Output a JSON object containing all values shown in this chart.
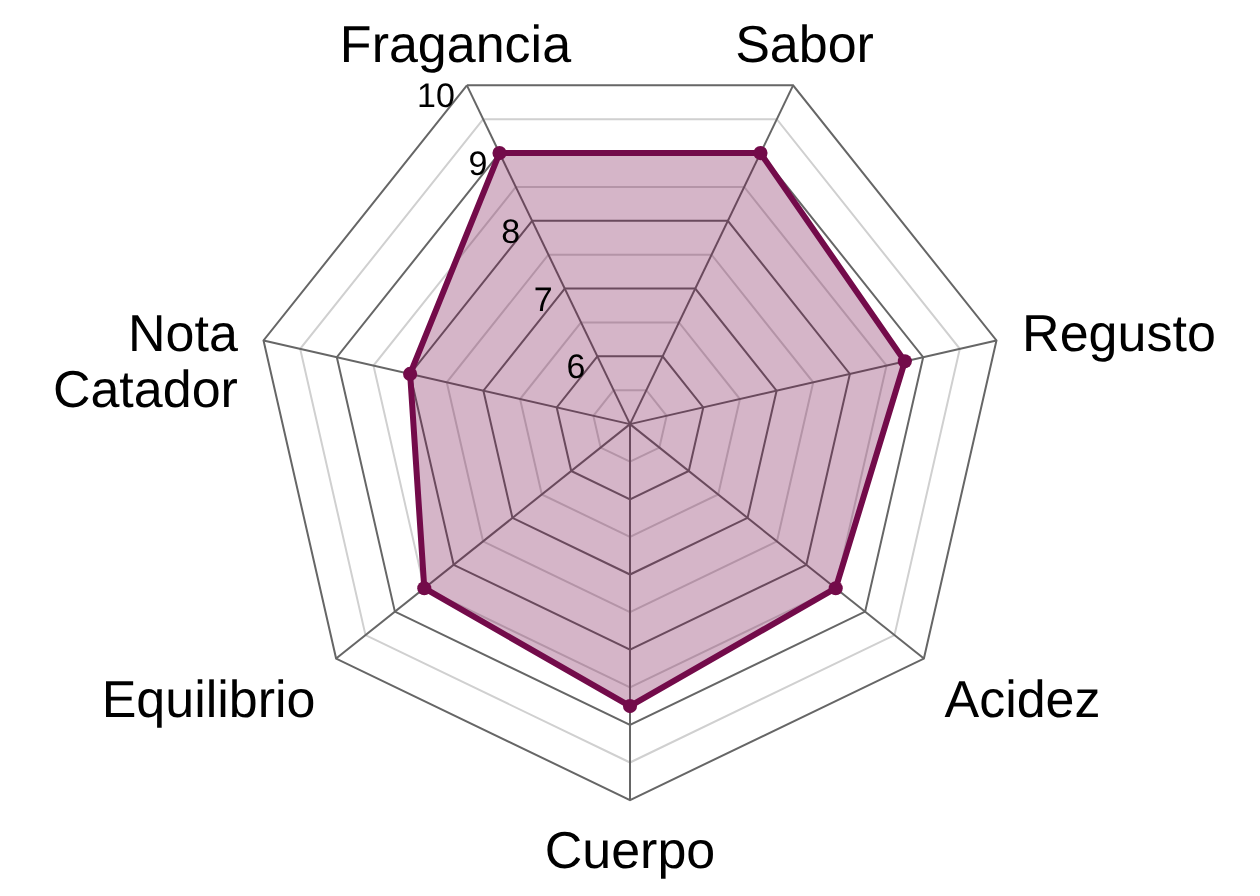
{
  "chart_data": {
    "type": "radar",
    "categories": [
      "Fragancia",
      "Sabor",
      "Regusto",
      "Acidez",
      "Cuerpo",
      "Equilibrio",
      "Nota Catador"
    ],
    "series": [
      {
        "color": "#730b4a",
        "values": [
          9,
          9,
          8.75,
          8.5,
          8.75,
          8.5,
          8
        ]
      }
    ],
    "ylim": [
      5,
      10
    ],
    "yticks": [
      6,
      7,
      8,
      9,
      10
    ],
    "grid": true,
    "marker": "circle"
  }
}
